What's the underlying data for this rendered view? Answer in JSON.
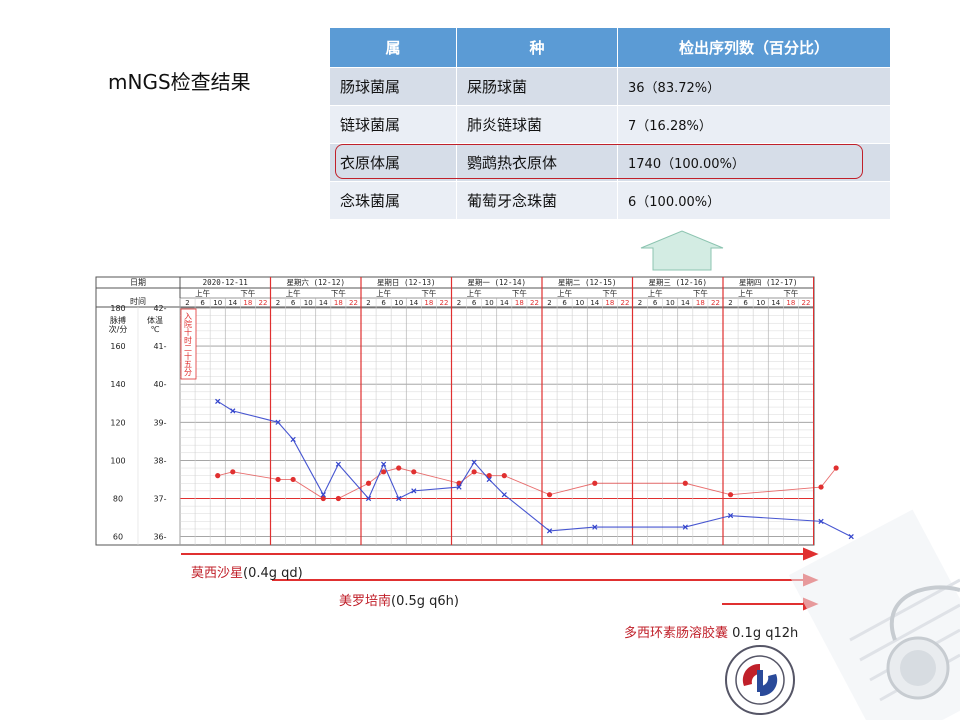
{
  "title": "mNGS检查结果",
  "table": {
    "headers": [
      "属",
      "种",
      "检出序列数（百分比）"
    ],
    "rows": [
      {
        "genus": "肠球菌属",
        "species": "屎肠球菌",
        "count": "36（83.72%）"
      },
      {
        "genus": "链球菌属",
        "species": "肺炎链球菌",
        "count": "7（16.28%）"
      },
      {
        "genus": "衣原体属",
        "species": "鹦鹉热衣原体",
        "count": "1740（100.00%）"
      },
      {
        "genus": "念珠菌属",
        "species": "葡萄牙念珠菌",
        "count": "6（100.00%）"
      }
    ]
  },
  "chart": {
    "header_date": "日期",
    "header_time": "时间",
    "days": [
      "2020-12-11",
      "星期六 (12-12)",
      "星期日 (12-13)",
      "星期一 (12-14)",
      "星期二 (12-15)",
      "星期三 (12-16)",
      "星期四 (12-17)"
    ],
    "am": "上午",
    "pm": "下午",
    "hours": [
      "2",
      "6",
      "10",
      "14",
      "18",
      "22"
    ],
    "pulse_label": "脉搏\n次/分",
    "temp_label": "体温\n℃",
    "pulse_ticks": [
      "180",
      "160",
      "140",
      "120",
      "100",
      "80",
      "60"
    ],
    "temp_ticks": [
      "42-",
      "41-",
      "40-",
      "39-",
      "38-",
      "37-",
      "36-"
    ],
    "admission_note": "入院十时二十五分",
    "accent_red": "#e03030",
    "accent_blue": "#3344cc"
  },
  "chart_data": {
    "type": "line",
    "xlabel": "",
    "ylabel": "",
    "x_unit": "hours since 2020-12-11 00:00",
    "series": [
      {
        "name": "",
        "unit": "℃",
        "color": "#e03030",
        "points": [
          [
            10,
            37.6
          ],
          [
            14,
            37.7
          ],
          [
            26,
            37.5
          ],
          [
            30,
            37.5
          ],
          [
            38,
            37.0
          ],
          [
            42,
            37.0
          ],
          [
            50,
            37.4
          ],
          [
            54,
            37.7
          ],
          [
            58,
            37.8
          ],
          [
            62,
            37.7
          ],
          [
            74,
            37.4
          ],
          [
            78,
            37.7
          ],
          [
            82,
            37.6
          ],
          [
            86,
            37.6
          ],
          [
            98,
            37.1
          ],
          [
            110,
            37.4
          ],
          [
            134,
            37.4
          ],
          [
            146,
            37.1
          ],
          [
            170,
            37.3
          ],
          [
            174,
            37.8
          ]
        ]
      },
      {
        "name": "",
        "unit": "次/分",
        "color": "#3344cc",
        "points": [
          [
            10,
            131
          ],
          [
            14,
            126
          ],
          [
            26,
            120
          ],
          [
            30,
            111
          ],
          [
            38,
            82
          ],
          [
            42,
            98
          ],
          [
            50,
            80
          ],
          [
            54,
            98
          ],
          [
            58,
            80
          ],
          [
            62,
            84
          ],
          [
            74,
            86
          ],
          [
            78,
            99
          ],
          [
            82,
            90
          ],
          [
            86,
            82
          ],
          [
            98,
            63
          ],
          [
            110,
            65
          ],
          [
            134,
            65
          ],
          [
            146,
            71
          ],
          [
            170,
            68
          ],
          [
            178,
            60
          ]
        ]
      }
    ]
  },
  "meds": [
    {
      "drug": "莫西沙星",
      "dose": "(0.4g qd)"
    },
    {
      "drug": "美罗培南",
      "dose": "(0.5g q6h)"
    },
    {
      "drug": "多西环素肠溶胶囊",
      "dose": " 0.1g q12h"
    }
  ]
}
